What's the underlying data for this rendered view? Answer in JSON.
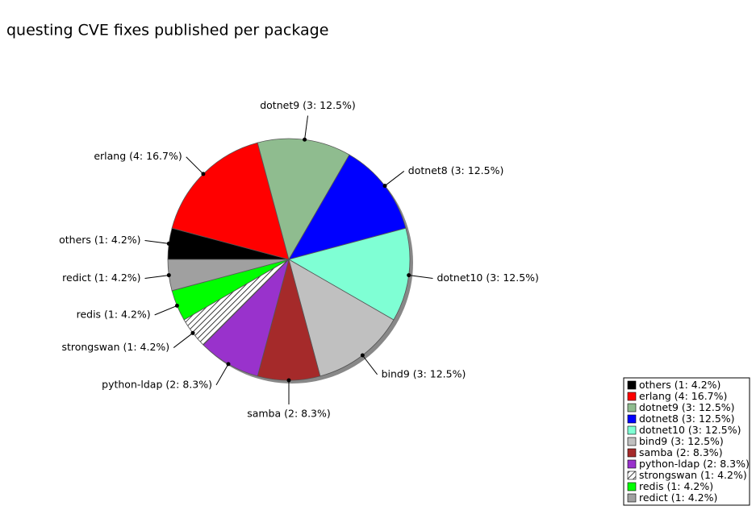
{
  "chart_data": {
    "type": "pie",
    "title": "questing CVE fixes published per package",
    "categories": [
      "others (1: 4.2%)",
      "erlang (4: 16.7%)",
      "dotnet9 (3: 12.5%)",
      "dotnet8 (3: 12.5%)",
      "dotnet10 (3: 12.5%)",
      "bind9 (3: 12.5%)",
      "samba (2: 8.3%)",
      "python-ldap (2: 8.3%)",
      "strongswan (1: 4.2%)",
      "redis (1: 4.2%)",
      "redict (1: 4.2%)"
    ],
    "values": [
      1,
      4,
      3,
      3,
      3,
      3,
      2,
      2,
      1,
      1,
      1
    ],
    "colors": [
      "#000000",
      "#ff0000",
      "#8fbc8f",
      "#0000ff",
      "#7fffd4",
      "#c0c0c0",
      "#a52a2a",
      "#9932cc",
      "url(#hatch)",
      "#00ff00",
      "#a0a0a0"
    ]
  }
}
